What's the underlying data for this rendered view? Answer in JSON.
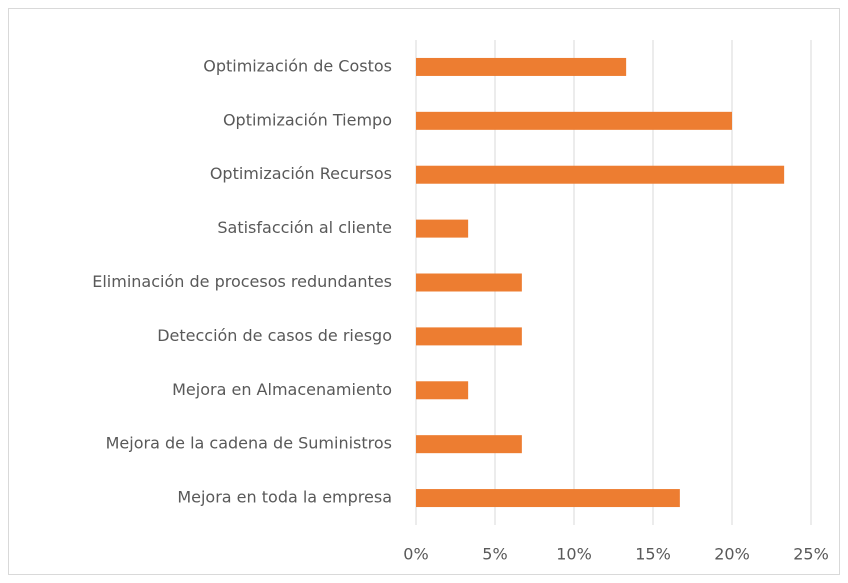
{
  "chart_data": {
    "type": "barh",
    "categories": [
      "Optimización de Costos",
      "Optimización Tiempo",
      "Optimización Recursos",
      "Satisfacción al cliente",
      "Eliminación de procesos redundantes",
      "Detección de casos de riesgo",
      "Mejora en Almacenamiento",
      "Mejora de la cadena de Suministros",
      "Mejora en toda la empresa"
    ],
    "values": [
      13.3,
      20,
      23.3,
      3.3,
      6.7,
      6.7,
      3.3,
      6.7,
      16.7
    ],
    "color": "#ed7d31",
    "xlim": [
      0,
      25
    ],
    "xticks": [
      {
        "value": 0,
        "label": "0%"
      },
      {
        "value": 5,
        "label": "5%"
      },
      {
        "value": 10,
        "label": "10%"
      },
      {
        "value": 15,
        "label": "15%"
      },
      {
        "value": 20,
        "label": "20%"
      },
      {
        "value": 25,
        "label": "25%"
      }
    ],
    "grid": true
  }
}
